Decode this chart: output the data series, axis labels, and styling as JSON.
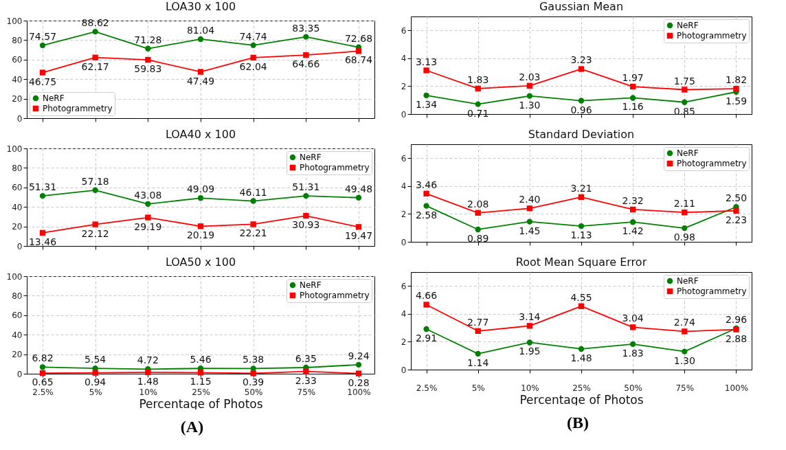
{
  "chart_data": [
    {
      "type": "line",
      "title": "LOA30 x 100",
      "categories": [
        null,
        null,
        null,
        null,
        null,
        null,
        null
      ],
      "ylim": [
        0,
        100
      ],
      "yticks": [
        0,
        20,
        40,
        60,
        80,
        100
      ],
      "grid": true,
      "legend": "bottom left",
      "tick_labels": "y",
      "series": [
        {
          "name": "NeRF",
          "color": "#008000",
          "marker": "circle",
          "values": [
            74.57,
            88.62,
            71.28,
            81.04,
            74.74,
            83.35,
            72.68
          ],
          "value_labels": [
            "74.57",
            "88.62",
            "71.28",
            "81.04",
            "74.74",
            "83.35",
            "72.68"
          ]
        },
        {
          "name": "Photogrammetry",
          "color": "#ff0000",
          "marker": "square",
          "values": [
            46.75,
            62.17,
            59.83,
            47.49,
            62.04,
            64.66,
            68.74
          ],
          "value_labels": [
            "46.75",
            "62.17",
            "59.83",
            "47.49",
            "62.04",
            "64.66",
            "68.74"
          ]
        }
      ]
    },
    {
      "type": "line",
      "title": "LOA40 x 100",
      "categories": [
        null,
        null,
        null,
        null,
        null,
        null,
        null
      ],
      "ylim": [
        0,
        100
      ],
      "yticks": [
        0,
        20,
        40,
        60,
        80,
        100
      ],
      "grid": true,
      "legend": "top right",
      "tick_labels": "y",
      "series": [
        {
          "name": "NeRF",
          "color": "#008000",
          "marker": "circle",
          "values": [
            51.31,
            57.18,
            43.08,
            49.09,
            46.11,
            51.31,
            49.48
          ],
          "value_labels": [
            "51.31",
            "57.18",
            "43.08",
            "49.09",
            "46.11",
            "51.31",
            "49.48"
          ]
        },
        {
          "name": "Photogrammetry",
          "color": "#ff0000",
          "marker": "square",
          "values": [
            13.46,
            22.12,
            29.19,
            20.19,
            22.21,
            30.93,
            19.47
          ],
          "value_labels": [
            "13.46",
            "22.12",
            "29.19",
            "20.19",
            "22.21",
            "30.93",
            "19.47"
          ]
        }
      ]
    },
    {
      "type": "line",
      "title": "LOA50 x 100",
      "xlabel": "Percentage of Photos",
      "annotations": [
        "(A)"
      ],
      "categories": [
        "2.5%",
        "5%",
        "10%",
        "25%",
        "50%",
        "75%",
        "100%"
      ],
      "ylim": [
        0,
        100
      ],
      "yticks": [
        0,
        20,
        40,
        60,
        80,
        100
      ],
      "grid": true,
      "legend": "top right",
      "series": [
        {
          "name": "NeRF",
          "color": "#008000",
          "marker": "circle",
          "values": [
            6.82,
            5.54,
            4.72,
            5.46,
            5.38,
            6.35,
            9.24
          ],
          "value_labels": [
            "6.82",
            "5.54",
            "4.72",
            "5.46",
            "5.38",
            "6.35",
            "9.24"
          ]
        },
        {
          "name": "Photogrammetry",
          "color": "#ff0000",
          "marker": "square",
          "values": [
            0.65,
            0.94,
            1.48,
            1.15,
            0.39,
            2.33,
            0.28
          ],
          "value_labels": [
            "0.65",
            "0.94",
            "1.48",
            "1.15",
            "0.39",
            "2.33",
            "0.28"
          ]
        }
      ]
    },
    {
      "type": "line",
      "title": "Gaussian Mean",
      "categories": [
        null,
        null,
        null,
        null,
        null,
        null,
        null
      ],
      "ylim": [
        0,
        7
      ],
      "yticks": [
        0,
        2,
        4,
        6
      ],
      "grid": true,
      "legend": "top right",
      "tick_labels": "y",
      "series": [
        {
          "name": "NeRF",
          "color": "#008000",
          "marker": "circle",
          "values": [
            1.34,
            0.71,
            1.3,
            0.96,
            1.16,
            0.85,
            1.59
          ],
          "value_labels": [
            "1.34",
            "0.71",
            "1.30",
            "0.96",
            "1.16",
            "0.85",
            "1.59"
          ]
        },
        {
          "name": "Photogrammetry",
          "color": "#ff0000",
          "marker": "square",
          "values": [
            3.13,
            1.83,
            2.03,
            3.23,
            1.97,
            1.75,
            1.82
          ],
          "value_labels": [
            "3.13",
            "1.83",
            "2.03",
            "3.23",
            "1.97",
            "1.75",
            "1.82"
          ]
        }
      ]
    },
    {
      "type": "line",
      "title": "Standard Deviation",
      "categories": [
        null,
        null,
        null,
        null,
        null,
        null,
        null
      ],
      "ylim": [
        0,
        7
      ],
      "yticks": [
        0,
        2,
        4,
        6
      ],
      "grid": true,
      "legend": "top right",
      "tick_labels": "y",
      "series": [
        {
          "name": "NeRF",
          "color": "#008000",
          "marker": "circle",
          "values": [
            2.58,
            0.89,
            1.45,
            1.13,
            1.42,
            0.98,
            2.5
          ],
          "value_labels": [
            "2.58",
            "0.89",
            "1.45",
            "1.13",
            "1.42",
            "0.98",
            "2.50"
          ]
        },
        {
          "name": "Photogrammetry",
          "color": "#ff0000",
          "marker": "square",
          "values": [
            3.46,
            2.08,
            2.4,
            3.21,
            2.32,
            2.11,
            2.23
          ],
          "value_labels": [
            "3.46",
            "2.08",
            "2.40",
            "3.21",
            "2.32",
            "2.11",
            "2.23"
          ]
        }
      ]
    },
    {
      "type": "line",
      "title": "Root Mean Square Error",
      "xlabel": "Percentage of Photos",
      "annotations": [
        "(B)"
      ],
      "categories": [
        "2.5%",
        "5%",
        "10%",
        "25%",
        "50%",
        "75%",
        "100%"
      ],
      "ylim": [
        0,
        7
      ],
      "yticks": [
        0,
        2,
        4,
        6
      ],
      "grid": true,
      "legend": "top right",
      "series": [
        {
          "name": "NeRF",
          "color": "#008000",
          "marker": "circle",
          "values": [
            2.91,
            1.14,
            1.95,
            1.48,
            1.83,
            1.3,
            2.96
          ],
          "value_labels": [
            "2.91",
            "1.14",
            "1.95",
            "1.48",
            "1.83",
            "1.30",
            "2.96"
          ]
        },
        {
          "name": "Photogrammetry",
          "color": "#ff0000",
          "marker": "square",
          "values": [
            4.66,
            2.77,
            3.14,
            4.55,
            3.04,
            2.74,
            2.88
          ],
          "value_labels": [
            "4.66",
            "2.77",
            "3.14",
            "4.55",
            "3.04",
            "2.74",
            "2.88"
          ]
        }
      ]
    }
  ]
}
